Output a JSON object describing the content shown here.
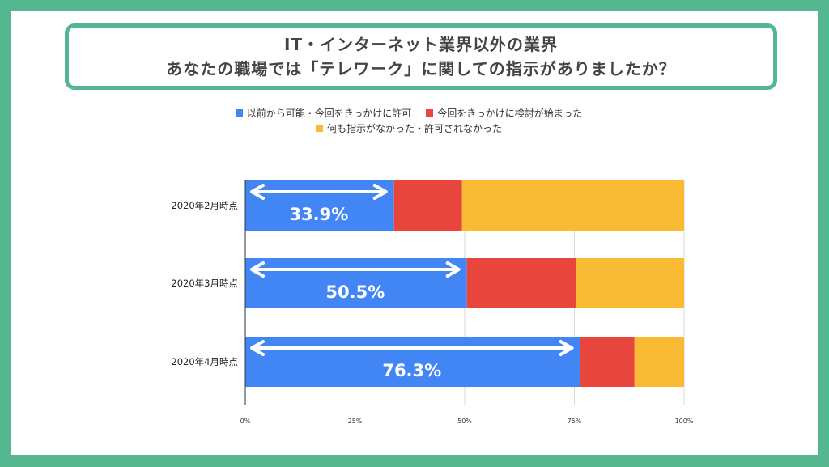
{
  "title": {
    "line1": "IT・インターネット業界以外の業界",
    "line2": "あなたの職場では「テレワーク」に関しての指示がありましたか？"
  },
  "legend": [
    {
      "label": "以前から可能・今回をきっかけに許可",
      "color": "#4285f4"
    },
    {
      "label": "今回をきっかけに検討が始まった",
      "color": "#e8453c"
    },
    {
      "label": "何も指示がなかった・許可されなかった",
      "color": "#f8bb33"
    }
  ],
  "chart_data": {
    "type": "bar",
    "orientation": "horizontal",
    "stacked": true,
    "categories": [
      "2020年2月時点",
      "2020年3月時点",
      "2020年4月時点"
    ],
    "series": [
      {
        "name": "以前から可能・今回をきっかけに許可",
        "values": [
          33.9,
          50.5,
          76.3
        ],
        "color": "#4285f4"
      },
      {
        "name": "今回をきっかけに検討が始まった",
        "values": [
          15.5,
          24.9,
          12.4
        ],
        "color": "#e8453c"
      },
      {
        "name": "何も指示がなかった・許可されなかった",
        "values": [
          50.6,
          24.6,
          11.3
        ],
        "color": "#f8bb33"
      }
    ],
    "xlim": [
      0,
      100
    ],
    "xticks": [
      "0%",
      "25%",
      "50%",
      "75%",
      "100%"
    ],
    "annotations": [
      "33.9%",
      "50.5%",
      "76.3%"
    ]
  }
}
